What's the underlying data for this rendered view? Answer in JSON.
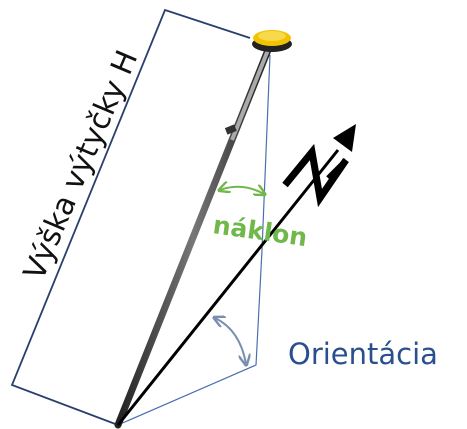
{
  "labels": {
    "height": "Výška výtyčky H",
    "tilt": "náklon",
    "orientation": "Orientácia"
  }
}
